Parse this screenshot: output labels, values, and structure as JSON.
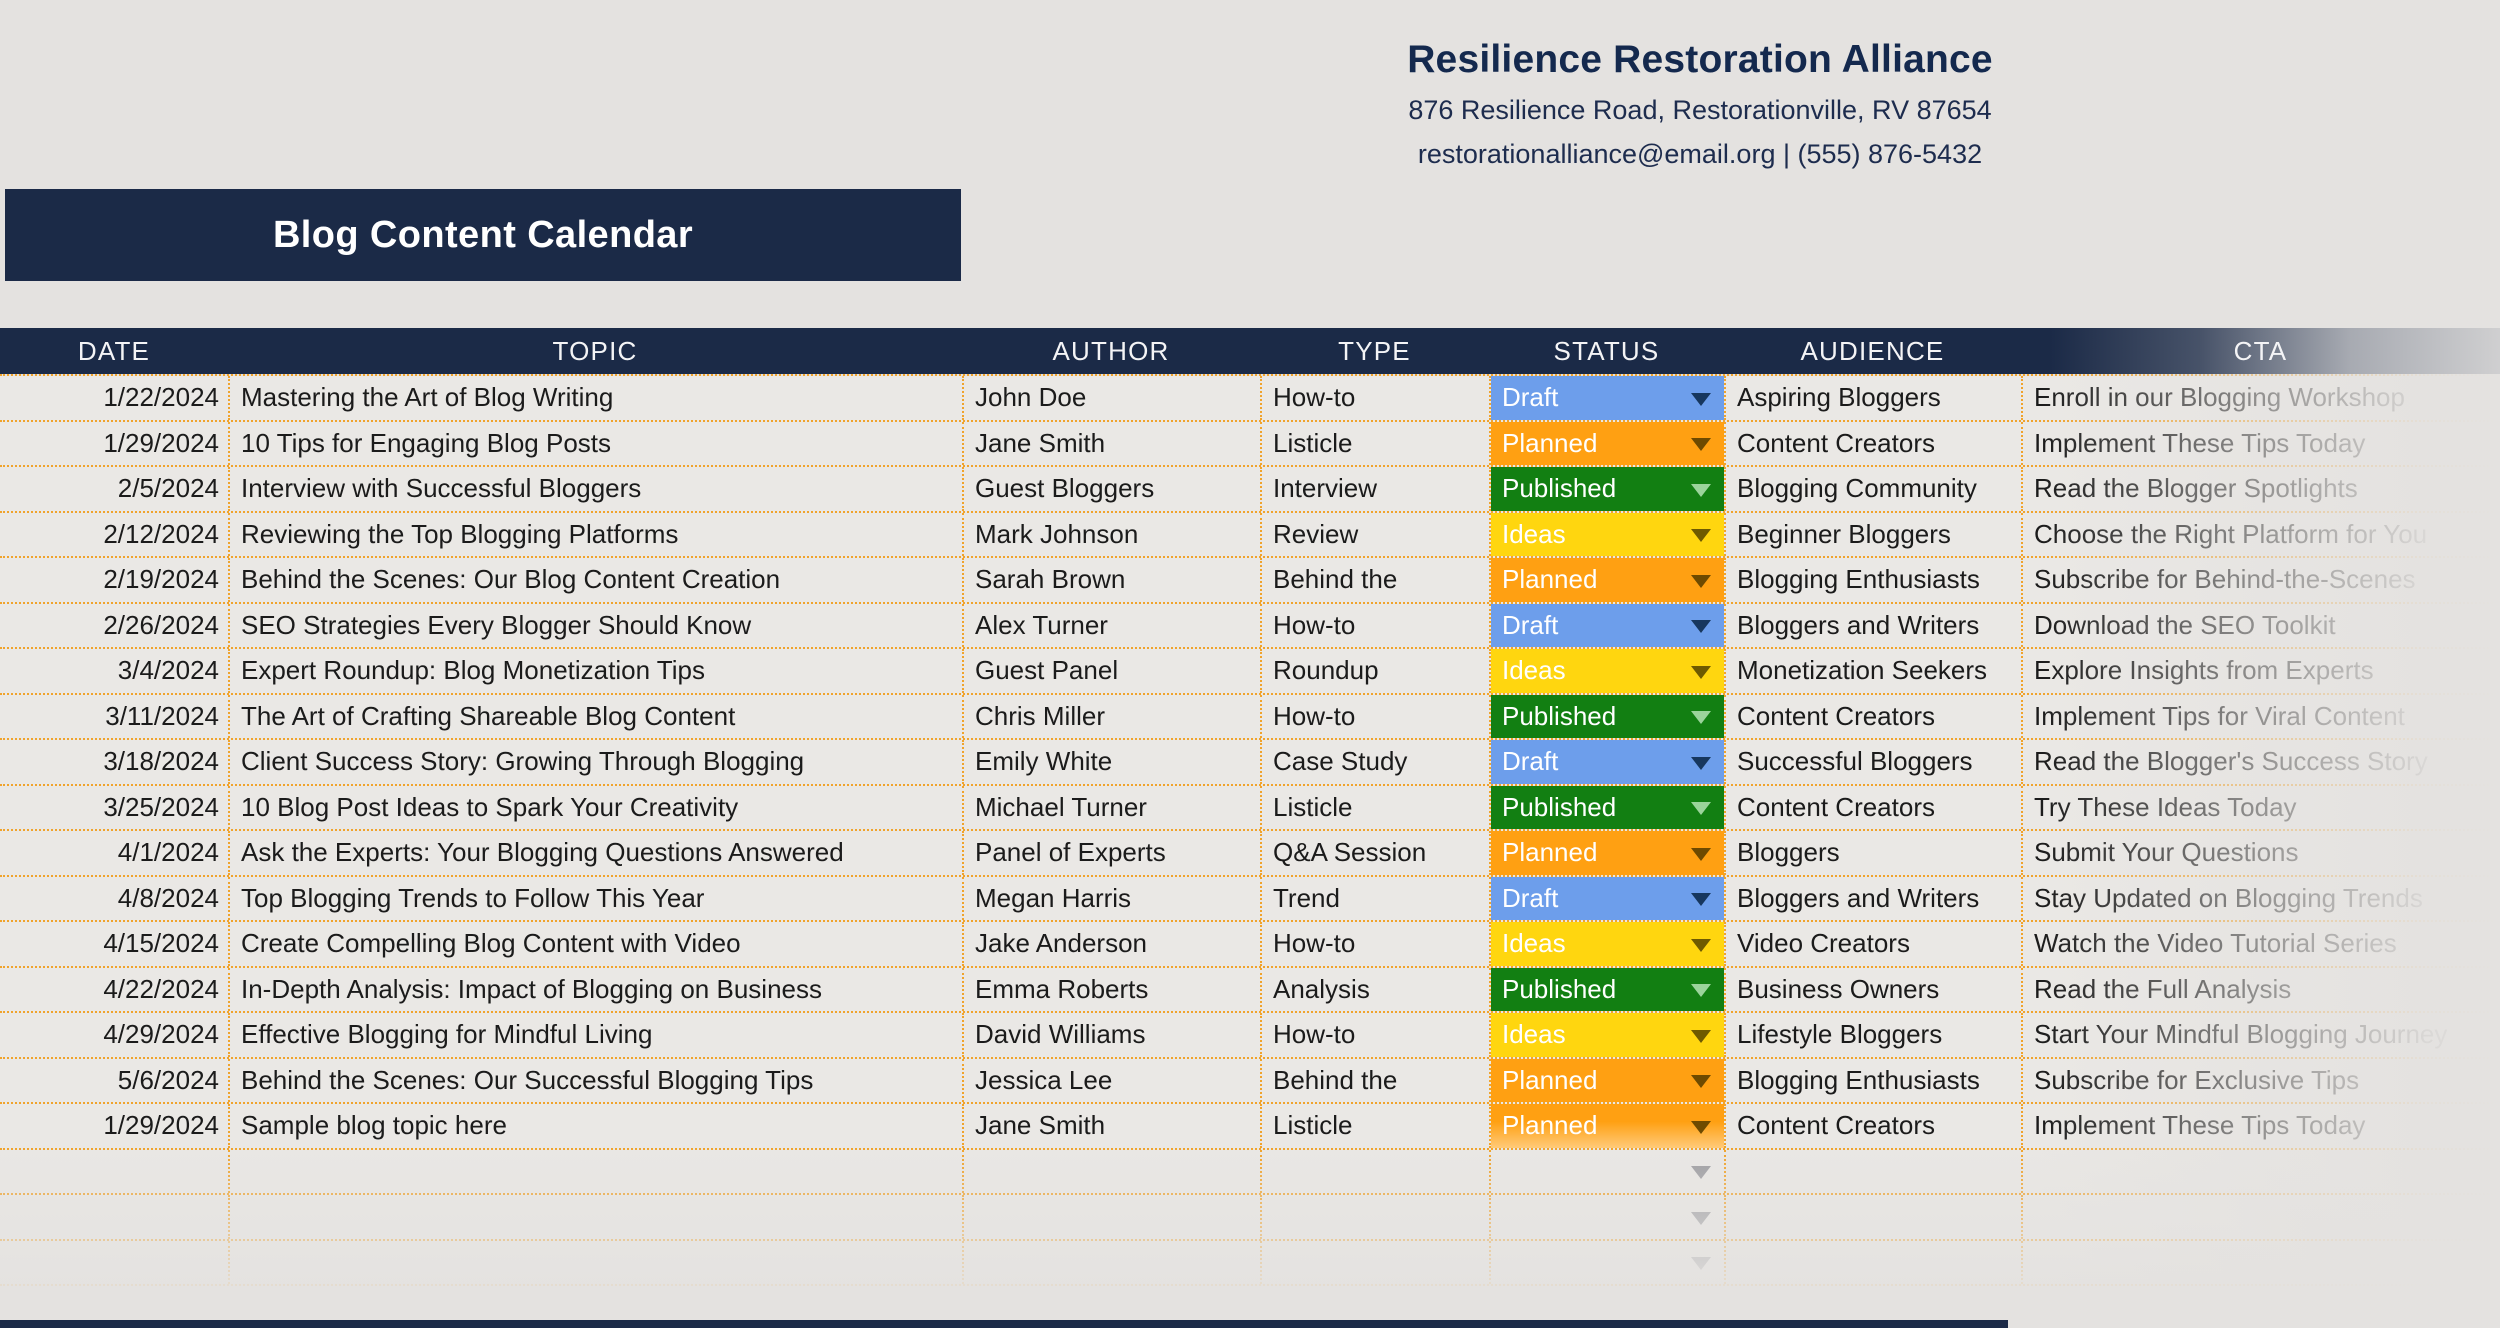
{
  "company": {
    "name": "Resilience Restoration Alliance",
    "address": "876 Resilience Road, Restorationville, RV 87654",
    "contact": "restorationalliance@email.org | (555) 876-5432"
  },
  "title": "Blog Content Calendar",
  "table": {
    "columns": [
      "DATE",
      "TOPIC",
      "AUTHOR",
      "TYPE",
      "STATUS",
      "AUDIENCE",
      "CTA"
    ],
    "rows": [
      {
        "date": "1/22/2024",
        "topic": "Mastering the Art of Blog Writing",
        "author": "John Doe",
        "type": "How-to",
        "status": "Draft",
        "audience": "Aspiring Bloggers",
        "cta": "Enroll in our Blogging Workshop"
      },
      {
        "date": "1/29/2024",
        "topic": "10 Tips for Engaging Blog Posts",
        "author": "Jane Smith",
        "type": "Listicle",
        "status": "Planned",
        "audience": "Content Creators",
        "cta": "Implement These Tips Today"
      },
      {
        "date": "2/5/2024",
        "topic": "Interview with Successful Bloggers",
        "author": "Guest Bloggers",
        "type": "Interview",
        "status": "Published",
        "audience": "Blogging Community",
        "cta": "Read the Blogger Spotlights"
      },
      {
        "date": "2/12/2024",
        "topic": "Reviewing the Top Blogging Platforms",
        "author": "Mark Johnson",
        "type": "Review",
        "status": "Ideas",
        "audience": "Beginner Bloggers",
        "cta": "Choose the Right Platform for You"
      },
      {
        "date": "2/19/2024",
        "topic": "Behind the Scenes: Our Blog Content Creation",
        "author": "Sarah Brown",
        "type": "Behind the",
        "status": "Planned",
        "audience": "Blogging Enthusiasts",
        "cta": "Subscribe for Behind-the-Scenes"
      },
      {
        "date": "2/26/2024",
        "topic": "SEO Strategies Every Blogger Should Know",
        "author": "Alex Turner",
        "type": "How-to",
        "status": "Draft",
        "audience": "Bloggers and Writers",
        "cta": "Download the SEO Toolkit"
      },
      {
        "date": "3/4/2024",
        "topic": "Expert Roundup: Blog Monetization Tips",
        "author": "Guest Panel",
        "type": "Roundup",
        "status": "Ideas",
        "audience": "Monetization Seekers",
        "cta": "Explore Insights from Experts"
      },
      {
        "date": "3/11/2024",
        "topic": "The Art of Crafting Shareable Blog Content",
        "author": "Chris Miller",
        "type": "How-to",
        "status": "Published",
        "audience": "Content Creators",
        "cta": "Implement Tips for Viral Content"
      },
      {
        "date": "3/18/2024",
        "topic": "Client Success Story: Growing Through Blogging",
        "author": "Emily White",
        "type": "Case Study",
        "status": "Draft",
        "audience": "Successful Bloggers",
        "cta": "Read the Blogger's Success Story"
      },
      {
        "date": "3/25/2024",
        "topic": "10 Blog Post Ideas to Spark Your Creativity",
        "author": "Michael Turner",
        "type": "Listicle",
        "status": "Published",
        "audience": "Content Creators",
        "cta": "Try These Ideas Today"
      },
      {
        "date": "4/1/2024",
        "topic": "Ask the Experts: Your Blogging Questions Answered",
        "author": "Panel of Experts",
        "type": "Q&A Session",
        "status": "Planned",
        "audience": "Bloggers",
        "cta": "Submit Your Questions"
      },
      {
        "date": "4/8/2024",
        "topic": "Top Blogging Trends to Follow This Year",
        "author": "Megan Harris",
        "type": "Trend",
        "status": "Draft",
        "audience": "Bloggers and Writers",
        "cta": "Stay Updated on Blogging Trends"
      },
      {
        "date": "4/15/2024",
        "topic": "Create Compelling Blog Content with Video",
        "author": "Jake Anderson",
        "type": "How-to",
        "status": "Ideas",
        "audience": "Video Creators",
        "cta": "Watch the Video Tutorial Series"
      },
      {
        "date": "4/22/2024",
        "topic": "In-Depth Analysis: Impact of Blogging on Business",
        "author": "Emma Roberts",
        "type": "Analysis",
        "status": "Published",
        "audience": "Business Owners",
        "cta": "Read the Full Analysis"
      },
      {
        "date": "4/29/2024",
        "topic": "Effective Blogging for Mindful Living",
        "author": "David Williams",
        "type": "How-to",
        "status": "Ideas",
        "audience": "Lifestyle Bloggers",
        "cta": "Start Your Mindful Blogging Journey"
      },
      {
        "date": "5/6/2024",
        "topic": "Behind the Scenes: Our Successful Blogging Tips",
        "author": "Jessica Lee",
        "type": "Behind the",
        "status": "Planned",
        "audience": "Blogging Enthusiasts",
        "cta": "Subscribe for Exclusive Tips"
      },
      {
        "date": "1/29/2024",
        "topic": "Sample blog topic here",
        "author": "Jane Smith",
        "type": "Listicle",
        "status": "Planned",
        "audience": "Content Creators",
        "cta": "Implement These Tips Today"
      }
    ],
    "empty_dropdown_rows": 3
  },
  "status_styles": {
    "Draft": {
      "bg": "#6d9eeb",
      "arrow": "#17375e"
    },
    "Planned": {
      "bg": "#ffa012",
      "arrow": "#6e4a00"
    },
    "Published": {
      "bg": "#127f12",
      "arrow": "#9bd49b"
    },
    "Ideas": {
      "bg": "#ffd60f",
      "arrow": "#6e5a00"
    }
  },
  "colors": {
    "navy": "#1b2a47",
    "page_bg": "#e4e2e0",
    "cell_bg": "#eae8e5",
    "grid_dotted_orange": "#f0a32c",
    "empty_dropdown_arrow": "#9e9ea2"
  }
}
